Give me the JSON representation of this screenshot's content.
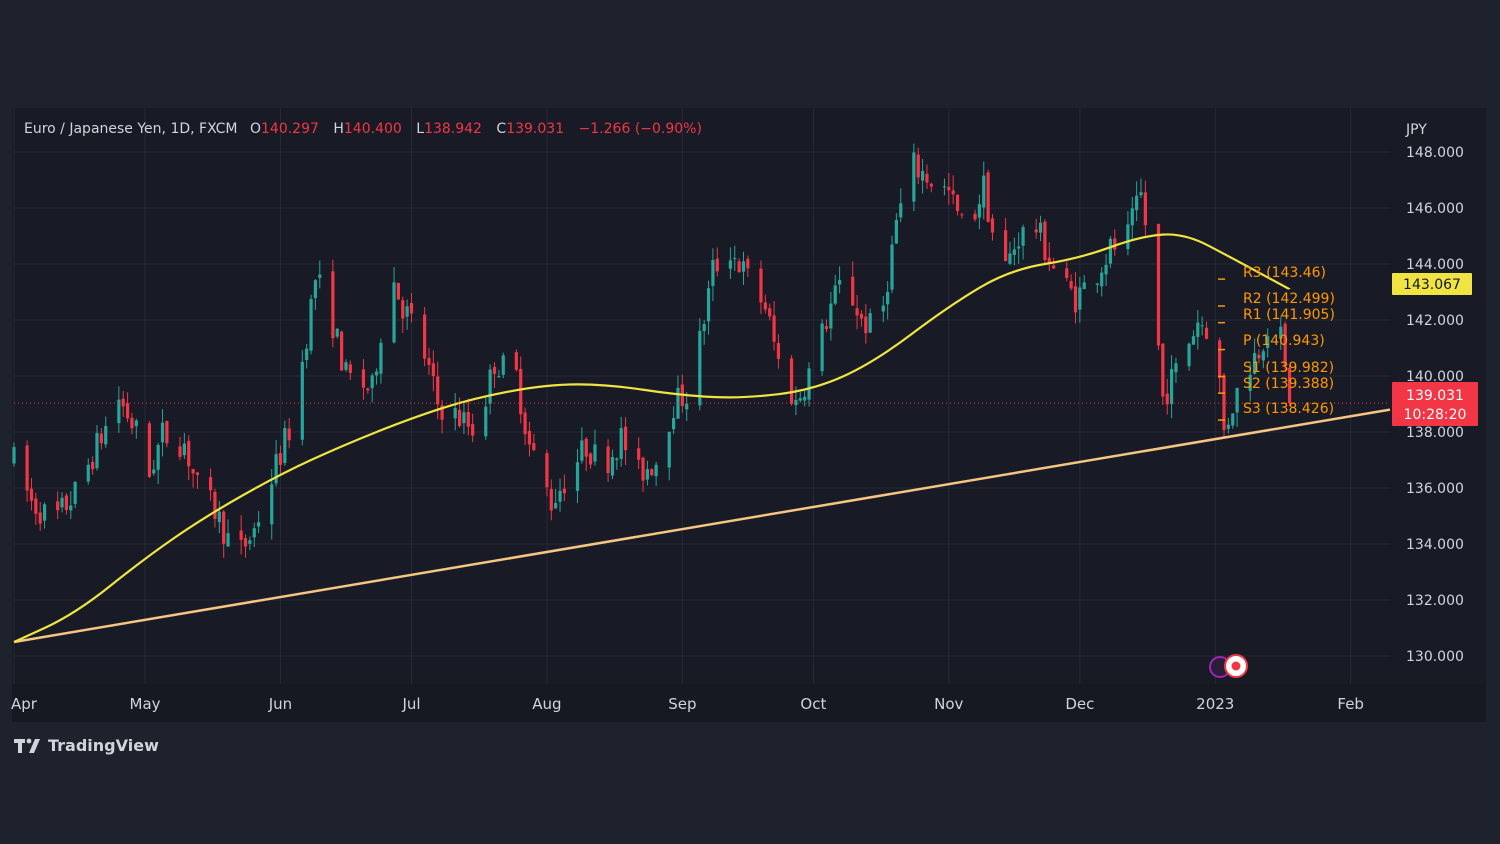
{
  "header": {
    "symbol": "Euro / Japanese Yen, 1D, FXCM",
    "o_label": "O",
    "o_value": "140.297",
    "h_label": "H",
    "h_value": "140.400",
    "l_label": "L",
    "l_value": "138.942",
    "c_label": "C",
    "c_value": "139.031",
    "change": "−1.266 (−0.90%)"
  },
  "branding": {
    "name": "TradingView"
  },
  "colors": {
    "background": "#1e222d",
    "pane": "#181b25",
    "up": "#26a69a",
    "down": "#f23645",
    "ma": "#f0e442",
    "trendline": "#f5c582",
    "pivot": "#ff9800",
    "text": "#d1d4dc"
  },
  "chart_data": {
    "type": "candlestick",
    "y_unit": "JPY",
    "ylim": [
      129,
      149.5
    ],
    "y_ticks": [
      "148.000",
      "146.000",
      "144.000",
      "142.000",
      "140.000",
      "138.000",
      "136.000",
      "134.000",
      "132.000",
      "130.000"
    ],
    "x_ticks": [
      "Apr",
      "May",
      "Jun",
      "Jul",
      "Aug",
      "Sep",
      "Oct",
      "Nov",
      "Dec",
      "2023",
      "Feb"
    ],
    "x_range": [
      "2022-04-01",
      "2023-02-10"
    ],
    "price_path": [
      [
        "2022-04-01",
        137.0
      ],
      [
        "2022-04-05",
        135.5
      ],
      [
        "2022-04-10",
        134.8
      ],
      [
        "2022-04-15",
        135.8
      ],
      [
        "2022-04-20",
        137.5
      ],
      [
        "2022-04-25",
        139.2
      ],
      [
        "2022-04-29",
        138.0
      ],
      [
        "2022-05-02",
        136.5
      ],
      [
        "2022-05-05",
        137.9
      ],
      [
        "2022-05-10",
        137.6
      ],
      [
        "2022-05-13",
        136.0
      ],
      [
        "2022-05-17",
        135.2
      ],
      [
        "2022-05-22",
        133.5
      ],
      [
        "2022-05-26",
        134.5
      ],
      [
        "2022-05-31",
        136.8
      ],
      [
        "2022-06-04",
        138.5
      ],
      [
        "2022-06-09",
        143.5
      ],
      [
        "2022-06-12",
        142.5
      ],
      [
        "2022-06-16",
        140.0
      ],
      [
        "2022-06-22",
        139.5
      ],
      [
        "2022-06-26",
        143.8
      ],
      [
        "2022-06-29",
        142.5
      ],
      [
        "2022-07-03",
        141.3
      ],
      [
        "2022-07-07",
        139.0
      ],
      [
        "2022-07-12",
        138.5
      ],
      [
        "2022-07-16",
        138.0
      ],
      [
        "2022-07-20",
        140.5
      ],
      [
        "2022-07-25",
        140.0
      ],
      [
        "2022-07-28",
        137.5
      ],
      [
        "2022-08-02",
        135.5
      ],
      [
        "2022-08-06",
        136.5
      ],
      [
        "2022-08-10",
        137.5
      ],
      [
        "2022-08-14",
        136.8
      ],
      [
        "2022-08-18",
        137.8
      ],
      [
        "2022-08-22",
        136.5
      ],
      [
        "2022-08-26",
        137.0
      ],
      [
        "2022-08-30",
        139.0
      ],
      [
        "2022-09-03",
        139.5
      ],
      [
        "2022-09-08",
        143.8
      ],
      [
        "2022-09-12",
        144.5
      ],
      [
        "2022-09-16",
        143.5
      ],
      [
        "2022-09-20",
        142.5
      ],
      [
        "2022-09-23",
        140.5
      ],
      [
        "2022-09-27",
        139.0
      ],
      [
        "2022-10-01",
        140.5
      ],
      [
        "2022-10-05",
        142.5
      ],
      [
        "2022-10-08",
        143.5
      ],
      [
        "2022-10-12",
        142.0
      ],
      [
        "2022-10-16",
        141.5
      ],
      [
        "2022-10-20",
        145.5
      ],
      [
        "2022-10-24",
        147.5
      ],
      [
        "2022-10-28",
        147.0
      ],
      [
        "2022-11-01",
        146.5
      ],
      [
        "2022-11-05",
        145.0
      ],
      [
        "2022-11-09",
        146.8
      ],
      [
        "2022-11-13",
        143.5
      ],
      [
        "2022-11-17",
        145.0
      ],
      [
        "2022-11-21",
        145.3
      ],
      [
        "2022-11-26",
        143.5
      ],
      [
        "2022-11-30",
        142.8
      ],
      [
        "2022-12-04",
        143.5
      ],
      [
        "2022-12-08",
        144.5
      ],
      [
        "2022-12-12",
        145.0
      ],
      [
        "2022-12-15",
        146.4
      ],
      [
        "2022-12-17",
        144.5
      ],
      [
        "2022-12-20",
        139.2
      ],
      [
        "2022-12-24",
        140.5
      ],
      [
        "2022-12-28",
        142.0
      ],
      [
        "2023-01-01",
        141.5
      ],
      [
        "2023-01-03",
        138.0
      ],
      [
        "2023-01-05",
        139.0
      ],
      [
        "2023-01-08",
        140.2
      ],
      [
        "2023-01-11",
        141.0
      ],
      [
        "2023-01-14",
        142.2
      ],
      [
        "2023-01-16",
        141.3
      ],
      [
        "2023-01-18",
        139.031
      ]
    ],
    "moving_average": {
      "points": [
        [
          "2022-04-01",
          130.5
        ],
        [
          "2022-04-15",
          131.5
        ],
        [
          "2022-05-01",
          133.5
        ],
        [
          "2022-05-15",
          135.0
        ],
        [
          "2022-06-01",
          136.5
        ],
        [
          "2022-06-15",
          137.5
        ],
        [
          "2022-07-01",
          138.5
        ],
        [
          "2022-07-15",
          139.2
        ],
        [
          "2022-08-01",
          139.7
        ],
        [
          "2022-08-15",
          139.7
        ],
        [
          "2022-09-01",
          139.3
        ],
        [
          "2022-09-15",
          139.2
        ],
        [
          "2022-10-01",
          139.5
        ],
        [
          "2022-10-15",
          140.5
        ],
        [
          "2022-11-01",
          142.5
        ],
        [
          "2022-11-15",
          143.8
        ],
        [
          "2022-12-01",
          144.2
        ],
        [
          "2022-12-15",
          145.0
        ],
        [
          "2022-12-25",
          145.1
        ],
        [
          "2023-01-05",
          144.2
        ],
        [
          "2023-01-18",
          143.1
        ]
      ],
      "last_value": "143.067"
    },
    "trendline": [
      [
        "2022-04-01",
        130.5
      ],
      [
        "2023-02-10",
        138.8
      ]
    ],
    "pivots": [
      {
        "label": "R3 (143.46)",
        "value": 143.46
      },
      {
        "label": "R2 (142.499)",
        "value": 142.499
      },
      {
        "label": "R1 (141.905)",
        "value": 141.905
      },
      {
        "label": "P (140.943)",
        "value": 140.943
      },
      {
        "label": "S1 (139.982)",
        "value": 139.982
      },
      {
        "label": "S2 (139.388)",
        "value": 139.388
      },
      {
        "label": "S3 (138.426)",
        "value": 138.426
      }
    ],
    "last_price": {
      "value": 139.031,
      "label": "139.031",
      "countdown": "10:28:20"
    }
  }
}
